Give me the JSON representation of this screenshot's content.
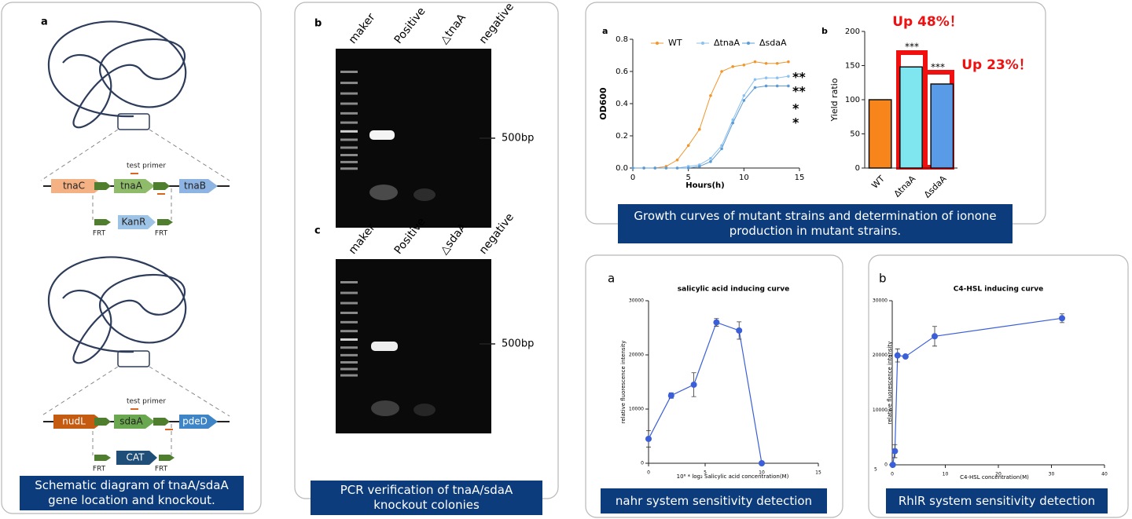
{
  "schematic": {
    "letter": "a",
    "top": {
      "primer": "test primer",
      "genes": [
        "tnaC",
        "tnaA",
        "tnaB"
      ],
      "cassette": "KanR",
      "frt": [
        "FRT",
        "FRT"
      ]
    },
    "bottom": {
      "primer": "test primer",
      "genes": [
        "nudL",
        "sdaA",
        "pdeD"
      ],
      "cassette": "CAT",
      "frt": [
        "FRT",
        "FRT"
      ]
    },
    "caption": "Schematic diagram of tnaA/sdaA gene location and knockout."
  },
  "pcr": {
    "gels": [
      {
        "letter": "b",
        "lanes": [
          "maker",
          "Positive",
          "△tnaA",
          "negative"
        ],
        "marker": "500bp"
      },
      {
        "letter": "c",
        "lanes": [
          "maker",
          "Positive",
          "△sdaA",
          "negative"
        ],
        "marker": "500bp"
      }
    ],
    "caption": "PCR verification of tnaA/sdaA knockout colonies"
  },
  "growth_caption": "Growth curves of mutant strains and determination of ionone production in mutant strains.",
  "nahr_caption": "nahr system sensitivity detection",
  "rhlr_caption": "RhlR system sensitivity detection",
  "chart_data": [
    {
      "type": "line",
      "panel_label": "a",
      "xlabel": "Hours(h)",
      "ylabel": "OD600",
      "x": [
        0,
        1,
        2,
        3,
        4,
        5,
        6,
        7,
        8,
        9,
        10,
        11,
        12,
        13,
        14
      ],
      "series": [
        {
          "name": "WT",
          "color": "#f0962c",
          "values": [
            0,
            0,
            0,
            0.01,
            0.05,
            0.14,
            0.24,
            0.45,
            0.6,
            0.63,
            0.64,
            0.66,
            0.65,
            0.65,
            0.66
          ]
        },
        {
          "name": "ΔtnaA",
          "color": "#8cc0ee",
          "values": [
            0,
            0,
            0,
            0,
            0,
            0.01,
            0.02,
            0.06,
            0.14,
            0.3,
            0.45,
            0.55,
            0.56,
            0.56,
            0.57
          ]
        },
        {
          "name": "ΔsdaA",
          "color": "#5b9bd5",
          "values": [
            0,
            0,
            0,
            0,
            0,
            0,
            0.01,
            0.04,
            0.12,
            0.28,
            0.42,
            0.5,
            0.51,
            0.51,
            0.51
          ]
        }
      ],
      "xlim": [
        0,
        15
      ],
      "xticks": [
        0,
        5,
        10,
        15
      ],
      "ylim": [
        0,
        0.8
      ],
      "yticks": [
        {
          "value": 0,
          "label": "0.0"
        },
        0.2,
        0.4,
        0.6,
        0.8
      ],
      "legend": "top",
      "annotations": [
        "**",
        "**",
        "*",
        "*"
      ]
    },
    {
      "type": "bar",
      "panel_label": "b",
      "ylabel": "Yield ratio",
      "categories": [
        "WT",
        "ΔtnaA",
        "ΔsdaA"
      ],
      "values": [
        100,
        148,
        123
      ],
      "colors": [
        "#f7851b",
        "#7fe6f0",
        "#5a9be8"
      ],
      "ylim": [
        0,
        200
      ],
      "yticks": [
        0,
        50,
        100,
        150,
        200
      ],
      "annotations": [
        "***",
        "***",
        "Up 48%！",
        "Up 23%！"
      ]
    },
    {
      "type": "line",
      "panel_label": "a",
      "title": "salicylic acid  inducing curve",
      "xlabel": "10⁶ * log₂ Salicylic acid concentration(M)",
      "ylabel": "relative fluorescence intensity",
      "x": [
        0,
        2,
        4,
        6,
        8,
        10
      ],
      "values": [
        4500,
        12500,
        14500,
        26000,
        24500,
        0
      ],
      "errors": [
        1500,
        500,
        2200,
        700,
        1600,
        0
      ],
      "color": "#3a5fd8",
      "xlim": [
        0,
        15
      ],
      "xticks": [
        0,
        5,
        10,
        15
      ],
      "ylim": [
        0,
        30000
      ],
      "yticks": [
        0,
        10000,
        20000,
        30000
      ]
    },
    {
      "type": "line",
      "panel_label": "b",
      "title": "C4-HSL inducing curve",
      "xlabel": "C4-HSL concentration(M)",
      "ylabel": "relative fluorescence intensity",
      "x": [
        0.1,
        0.5,
        1,
        2.5,
        8,
        32
      ],
      "values": [
        0,
        2500,
        20000,
        19800,
        23500,
        26800
      ],
      "errors": [
        0,
        1200,
        1200,
        0,
        1800,
        800
      ],
      "color": "#3a5fd8",
      "xlim": [
        0,
        40
      ],
      "xticks": [
        0,
        10,
        20,
        30,
        40
      ],
      "ylim": [
        0,
        30000
      ],
      "yticks": [
        0,
        10000,
        20000,
        30000
      ],
      "annotations": [
        "5"
      ]
    }
  ]
}
